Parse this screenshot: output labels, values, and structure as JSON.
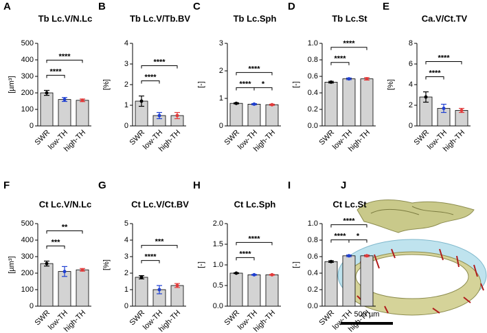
{
  "chart_data": [
    {
      "type": "bar",
      "label": "A",
      "title": "Tb Lc.V/N.Lc",
      "y_label": "[µm³]",
      "categories": [
        "SWR",
        "low-TH",
        "high-TH"
      ],
      "values": [
        200,
        160,
        155
      ],
      "errors": [
        15,
        12,
        8
      ],
      "color": "#d3d3d3",
      "point_colors": [
        "#000000",
        "#1f3fd1",
        "#e23a3a"
      ],
      "ylim": [
        0,
        500
      ],
      "yticks": [
        0,
        100,
        200,
        300,
        400,
        500
      ],
      "significance": [
        {
          "text": "****",
          "between": [
            0,
            1
          ]
        },
        {
          "text": "****",
          "between": [
            0,
            2
          ]
        }
      ]
    },
    {
      "type": "bar",
      "label": "B",
      "title": "Tb Lc.V/Tb.BV",
      "y_label": "[%]",
      "categories": [
        "SWR",
        "low-TH",
        "high-TH"
      ],
      "values": [
        1.2,
        0.5,
        0.5
      ],
      "errors": [
        0.25,
        0.15,
        0.15
      ],
      "color": "#d3d3d3",
      "point_colors": [
        "#000000",
        "#1f3fd1",
        "#e23a3a"
      ],
      "ylim": [
        0,
        4
      ],
      "yticks": [
        0,
        1,
        2,
        3,
        4
      ],
      "significance": [
        {
          "text": "****",
          "between": [
            0,
            1
          ]
        },
        {
          "text": "****",
          "between": [
            0,
            2
          ]
        }
      ]
    },
    {
      "type": "bar",
      "label": "C",
      "title": "Tb Lc.Sph",
      "y_label": "[-]",
      "categories": [
        "SWR",
        "low-TH",
        "high-TH"
      ],
      "values": [
        0.82,
        0.79,
        0.77
      ],
      "errors": [
        0.02,
        0.02,
        0.02
      ],
      "color": "#d3d3d3",
      "point_colors": [
        "#000000",
        "#1f3fd1",
        "#e23a3a"
      ],
      "ylim": [
        0,
        3
      ],
      "yticks": [
        0,
        1,
        2,
        3
      ],
      "significance": [
        {
          "text": "****",
          "between": [
            0,
            1
          ]
        },
        {
          "text": "*",
          "between": [
            1,
            2
          ]
        },
        {
          "text": "****",
          "between": [
            0,
            2
          ]
        }
      ]
    },
    {
      "type": "bar",
      "label": "D",
      "title": "Tb Lc.St",
      "y_label": "[-]",
      "categories": [
        "SWR",
        "low-TH",
        "high-TH"
      ],
      "values": [
        0.53,
        0.57,
        0.57
      ],
      "errors": [
        0.01,
        0.01,
        0.015
      ],
      "color": "#d3d3d3",
      "point_colors": [
        "#000000",
        "#1f3fd1",
        "#e23a3a"
      ],
      "ylim": [
        0,
        1.0
      ],
      "yticks": [
        {
          "value": 0,
          "label": "0.0"
        },
        0.2,
        0.4,
        0.6,
        0.8,
        {
          "value": 1,
          "label": "1.0"
        }
      ],
      "significance": [
        {
          "text": "****",
          "between": [
            0,
            1
          ]
        },
        {
          "text": "****",
          "between": [
            0,
            2
          ]
        }
      ]
    },
    {
      "type": "bar",
      "label": "E",
      "title": "Ca.V/Ct.TV",
      "y_label": "[%]",
      "categories": [
        "SWR",
        "low-TH",
        "high-TH"
      ],
      "values": [
        2.8,
        1.7,
        1.5
      ],
      "errors": [
        0.5,
        0.4,
        0.2
      ],
      "color": "#d3d3d3",
      "point_colors": [
        "#000000",
        "#1f3fd1",
        "#e23a3a"
      ],
      "ylim": [
        0,
        8
      ],
      "yticks": [
        0,
        2,
        4,
        6,
        8
      ],
      "significance": [
        {
          "text": "****",
          "between": [
            0,
            1
          ]
        },
        {
          "text": "****",
          "between": [
            0,
            2
          ]
        }
      ]
    },
    {
      "type": "bar",
      "label": "F",
      "title": "Ct Lc.V/N.Lc",
      "y_label": "[µm³]",
      "categories": [
        "SWR",
        "low-TH",
        "high-TH"
      ],
      "values": [
        258,
        210,
        220
      ],
      "errors": [
        15,
        30,
        8
      ],
      "color": "#d3d3d3",
      "point_colors": [
        "#000000",
        "#1f3fd1",
        "#e23a3a"
      ],
      "ylim": [
        0,
        500
      ],
      "yticks": [
        0,
        100,
        200,
        300,
        400,
        500
      ],
      "significance": [
        {
          "text": "***",
          "between": [
            0,
            1
          ]
        },
        {
          "text": "**",
          "between": [
            0,
            2
          ]
        }
      ]
    },
    {
      "type": "bar",
      "label": "G",
      "title": "Ct Lc.V/Ct.BV",
      "y_label": "[%]",
      "categories": [
        "SWR",
        "low-TH",
        "high-TH"
      ],
      "values": [
        1.75,
        1.0,
        1.25
      ],
      "errors": [
        0.1,
        0.25,
        0.12
      ],
      "color": "#d3d3d3",
      "point_colors": [
        "#000000",
        "#1f3fd1",
        "#e23a3a"
      ],
      "ylim": [
        0,
        5
      ],
      "yticks": [
        0,
        1,
        2,
        3,
        4,
        5
      ],
      "significance": [
        {
          "text": "****",
          "between": [
            0,
            1
          ]
        },
        {
          "text": "***",
          "between": [
            0,
            2
          ]
        }
      ]
    },
    {
      "type": "bar",
      "label": "H",
      "title": "Ct Lc.Sph",
      "y_label": "[-]",
      "categories": [
        "SWR",
        "low-TH",
        "high-TH"
      ],
      "values": [
        0.8,
        0.76,
        0.76
      ],
      "errors": [
        0.01,
        0.01,
        0.01
      ],
      "color": "#d3d3d3",
      "point_colors": [
        "#000000",
        "#1f3fd1",
        "#e23a3a"
      ],
      "ylim": [
        0,
        2.0
      ],
      "yticks": [
        {
          "value": 0,
          "label": "0.0"
        },
        0.5,
        {
          "value": 1,
          "label": "1.0"
        },
        1.5,
        {
          "value": 2,
          "label": "2.0"
        }
      ],
      "significance": [
        {
          "text": "****",
          "between": [
            0,
            1
          ]
        },
        {
          "text": "****",
          "between": [
            0,
            2
          ]
        }
      ]
    },
    {
      "type": "bar",
      "label": "I",
      "title": "Ct Lc.St",
      "y_label": "[-]",
      "categories": [
        "SWR",
        "low-TH",
        "high-TH"
      ],
      "values": [
        0.54,
        0.61,
        0.61
      ],
      "errors": [
        0.01,
        0.01,
        0.01
      ],
      "color": "#d3d3d3",
      "point_colors": [
        "#000000",
        "#1f3fd1",
        "#e23a3a"
      ],
      "ylim": [
        0,
        1.0
      ],
      "yticks": [
        {
          "value": 0,
          "label": "0.0"
        },
        0.2,
        0.4,
        0.6,
        0.8,
        {
          "value": 1,
          "label": "1.0"
        }
      ],
      "significance": [
        {
          "text": "****",
          "between": [
            0,
            1
          ]
        },
        {
          "text": "*",
          "between": [
            1,
            2
          ]
        },
        {
          "text": "****",
          "between": [
            0,
            2
          ]
        }
      ]
    }
  ],
  "image_panel": {
    "label": "J",
    "scale_bar": "500 µm"
  }
}
